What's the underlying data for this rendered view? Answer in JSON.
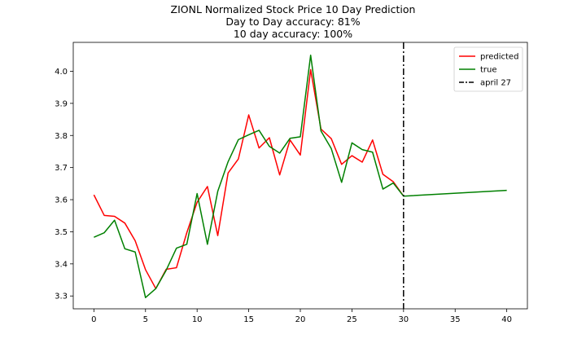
{
  "chart_data": {
    "type": "line",
    "title_lines": [
      "ZIONL Normalized Stock Price 10 Day Prediction",
      "Day to Day accuracy: 81%",
      "10 day accuracy: 100%"
    ],
    "xlabel": "",
    "ylabel": "",
    "xlim": [
      -2,
      42
    ],
    "ylim": [
      3.26,
      4.09
    ],
    "xticks": [
      0,
      5,
      10,
      15,
      20,
      25,
      30,
      35,
      40
    ],
    "yticks": [
      3.3,
      3.4,
      3.5,
      3.6,
      3.7,
      3.8,
      3.9,
      4.0
    ],
    "ytick_labels": [
      "3.3",
      "3.4",
      "3.5",
      "3.6",
      "3.7",
      "3.8",
      "3.9",
      "4.0"
    ],
    "legend_position": "top-right",
    "series": [
      {
        "name": "predicted",
        "color": "#ff0000",
        "x": [
          0,
          1,
          2,
          3,
          4,
          5,
          6,
          7,
          8,
          9,
          10,
          11,
          12,
          13,
          14,
          15,
          16,
          17,
          18,
          19,
          20,
          21,
          22,
          23,
          24,
          25,
          26,
          27,
          28,
          29,
          30
        ],
        "y": [
          3.615,
          3.551,
          3.548,
          3.527,
          3.472,
          3.382,
          3.323,
          3.383,
          3.388,
          3.497,
          3.592,
          3.641,
          3.488,
          3.683,
          3.727,
          3.864,
          3.761,
          3.793,
          3.677,
          3.786,
          3.739,
          4.005,
          3.82,
          3.79,
          3.71,
          3.737,
          3.717,
          3.786,
          3.679,
          3.656,
          3.611
        ]
      },
      {
        "name": "true",
        "color": "#008000",
        "x": [
          0,
          1,
          2,
          3,
          4,
          5,
          6,
          7,
          8,
          9,
          10,
          11,
          12,
          13,
          14,
          15,
          16,
          17,
          18,
          19,
          20,
          21,
          22,
          23,
          24,
          25,
          26,
          27,
          28,
          29,
          30,
          40
        ],
        "y": [
          3.483,
          3.497,
          3.536,
          3.447,
          3.437,
          3.295,
          3.323,
          3.38,
          3.449,
          3.461,
          3.619,
          3.461,
          3.626,
          3.718,
          3.787,
          3.802,
          3.816,
          3.766,
          3.745,
          3.791,
          3.796,
          4.05,
          3.814,
          3.759,
          3.654,
          3.777,
          3.756,
          3.748,
          3.633,
          3.652,
          3.611,
          3.629
        ]
      }
    ],
    "vline": {
      "name": "april 27",
      "x": 30,
      "color": "#000000",
      "style": "dashdot"
    }
  }
}
